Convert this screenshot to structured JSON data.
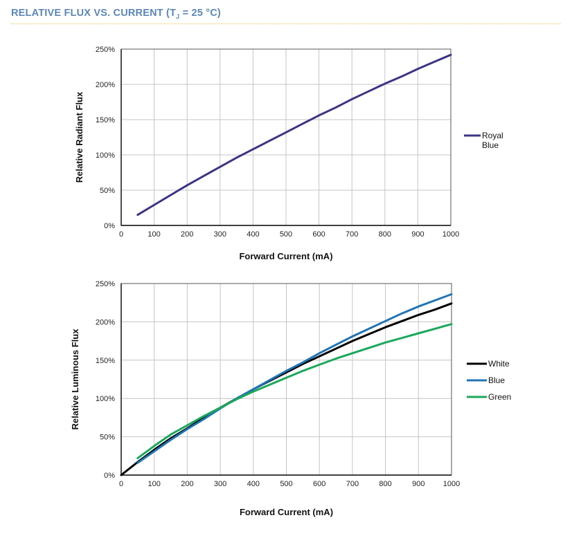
{
  "header": {
    "title_prefix": "RELATIVE FLUX VS. CURRENT (T",
    "title_sub": "J",
    "title_suffix": " = 25 °C)",
    "title_color": "#5b87b7",
    "rule_color": "#f0c24e"
  },
  "chart_data": [
    {
      "type": "line",
      "xlabel": "Forward Current (mA)",
      "ylabel": "Relative Radiant Flux",
      "xlim": [
        0,
        1000
      ],
      "ylim": [
        0,
        250
      ],
      "xticks": [
        0,
        100,
        200,
        300,
        400,
        500,
        600,
        700,
        800,
        900,
        1000
      ],
      "yticks": [
        0,
        50,
        100,
        150,
        200,
        250
      ],
      "ytick_labels": [
        "0%",
        "50%",
        "100%",
        "150%",
        "200%",
        "250%"
      ],
      "grid": true,
      "legend_position": "right",
      "series": [
        {
          "name": "Royal Blue",
          "legend_lines": [
            "Royal",
            "Blue"
          ],
          "color": "#3b3386",
          "x": [
            50,
            100,
            150,
            200,
            250,
            300,
            350,
            400,
            450,
            500,
            550,
            600,
            650,
            700,
            750,
            800,
            850,
            900,
            950,
            1000
          ],
          "y": [
            15,
            29,
            43,
            57,
            70,
            83,
            96,
            108,
            120,
            132,
            144,
            156,
            167,
            179,
            190,
            201,
            211,
            222,
            232,
            242
          ]
        }
      ]
    },
    {
      "type": "line",
      "xlabel": "Forward Current (mA)",
      "ylabel": "Relative Luminous Flux",
      "xlim": [
        0,
        1000
      ],
      "ylim": [
        0,
        250
      ],
      "xticks": [
        0,
        100,
        200,
        300,
        400,
        500,
        600,
        700,
        800,
        900,
        1000
      ],
      "yticks": [
        0,
        50,
        100,
        150,
        200,
        250
      ],
      "ytick_labels": [
        "0%",
        "50%",
        "100%",
        "150%",
        "200%",
        "250%"
      ],
      "grid": true,
      "legend_position": "right",
      "series": [
        {
          "name": "White",
          "color": "#000000",
          "x": [
            0,
            50,
            100,
            150,
            200,
            250,
            300,
            350,
            400,
            450,
            500,
            550,
            600,
            650,
            700,
            750,
            800,
            850,
            900,
            950,
            1000
          ],
          "y": [
            0,
            17,
            33,
            48,
            61,
            75,
            88,
            100,
            112,
            123,
            134,
            145,
            155,
            165,
            175,
            184,
            193,
            201,
            209,
            216,
            224
          ]
        },
        {
          "name": "Blue",
          "color": "#1f74b4",
          "x": [
            50,
            100,
            150,
            200,
            250,
            300,
            350,
            400,
            450,
            500,
            550,
            600,
            650,
            700,
            750,
            800,
            850,
            900,
            950,
            1000
          ],
          "y": [
            16,
            31,
            46,
            60,
            73,
            87,
            100,
            112,
            124,
            136,
            147,
            159,
            170,
            181,
            191,
            201,
            211,
            220,
            228,
            236
          ]
        },
        {
          "name": "Green",
          "color": "#1aa85a",
          "x": [
            50,
            100,
            150,
            200,
            250,
            300,
            350,
            400,
            450,
            500,
            550,
            600,
            650,
            700,
            750,
            800,
            850,
            900,
            950,
            1000
          ],
          "y": [
            22,
            38,
            53,
            65,
            77,
            88,
            99,
            109,
            118,
            127,
            136,
            144,
            152,
            159,
            166,
            173,
            179,
            185,
            191,
            197
          ]
        }
      ]
    }
  ]
}
